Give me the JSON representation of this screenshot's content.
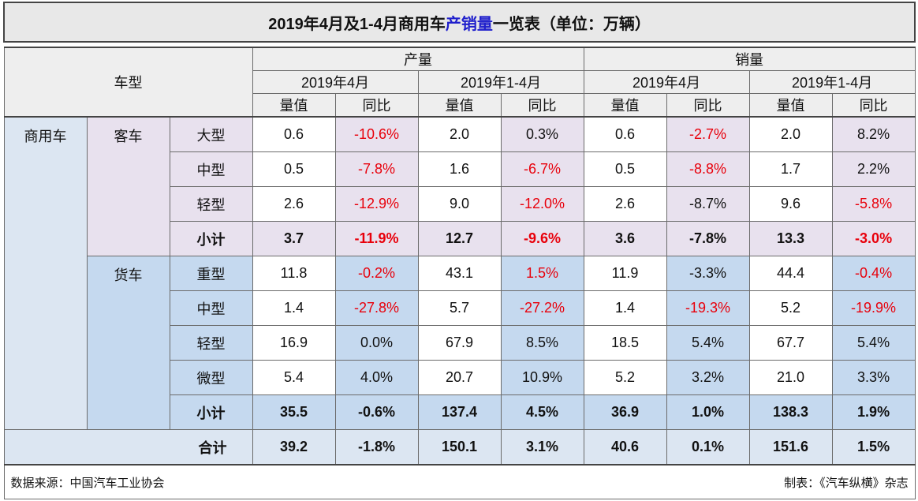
{
  "title": {
    "part1": "2019年4月及1-4月商用车",
    "highlight": "产销量",
    "part2": "一览表（单位：万辆）"
  },
  "header": {
    "vehicle_type": "车型",
    "production": "产量",
    "sales": "销量",
    "month": "2019年4月",
    "ytd": "2019年1-4月",
    "value": "量值",
    "yoy": "同比"
  },
  "groups": {
    "commercial": "商用车",
    "bus": "客车",
    "truck": "货车"
  },
  "subtotal_label": "小计",
  "total_label": "合计",
  "rows": [
    {
      "type": "大型",
      "p_m": "0.6",
      "p_m_y": "-10.6%",
      "p_y": "2.0",
      "p_y_y": "0.3%",
      "s_m": "0.6",
      "s_m_y": "-2.7%",
      "s_y": "2.0",
      "s_y_y": "8.2%"
    },
    {
      "type": "中型",
      "p_m": "0.5",
      "p_m_y": "-7.8%",
      "p_y": "1.6",
      "p_y_y": "-6.7%",
      "s_m": "0.5",
      "s_m_y": "-8.8%",
      "s_y": "1.7",
      "s_y_y": "2.2%"
    },
    {
      "type": "轻型",
      "p_m": "2.6",
      "p_m_y": "-12.9%",
      "p_y": "9.0",
      "p_y_y": "-12.0%",
      "s_m": "2.6",
      "s_m_y": "-8.7%",
      "s_y": "9.6",
      "s_y_y": "-5.8%"
    },
    {
      "type": "小计",
      "p_m": "3.7",
      "p_m_y": "-11.9%",
      "p_y": "12.7",
      "p_y_y": "-9.6%",
      "s_m": "3.6",
      "s_m_y": "-7.8%",
      "s_y": "13.3",
      "s_y_y": "-3.0%"
    },
    {
      "type": "重型",
      "p_m": "11.8",
      "p_m_y": "-0.2%",
      "p_y": "43.1",
      "p_y_y": "1.5%",
      "s_m": "11.9",
      "s_m_y": "-3.3%",
      "s_y": "44.4",
      "s_y_y": "-0.4%"
    },
    {
      "type": "中型",
      "p_m": "1.4",
      "p_m_y": "-27.8%",
      "p_y": "5.7",
      "p_y_y": "-27.2%",
      "s_m": "1.4",
      "s_m_y": "-19.3%",
      "s_y": "5.2",
      "s_y_y": "-19.9%"
    },
    {
      "type": "轻型",
      "p_m": "16.9",
      "p_m_y": "0.0%",
      "p_y": "67.9",
      "p_y_y": "8.5%",
      "s_m": "18.5",
      "s_m_y": "5.4%",
      "s_y": "67.7",
      "s_y_y": "5.4%"
    },
    {
      "type": "微型",
      "p_m": "5.4",
      "p_m_y": "4.0%",
      "p_y": "20.7",
      "p_y_y": "10.9%",
      "s_m": "5.2",
      "s_m_y": "3.2%",
      "s_y": "21.0",
      "s_y_y": "3.3%"
    },
    {
      "type": "小计",
      "p_m": "35.5",
      "p_m_y": "-0.6%",
      "p_y": "137.4",
      "p_y_y": "4.5%",
      "s_m": "36.9",
      "s_m_y": "1.0%",
      "s_y": "138.3",
      "s_y_y": "1.9%"
    },
    {
      "type": "合计",
      "p_m": "39.2",
      "p_m_y": "-1.8%",
      "p_y": "150.1",
      "p_y_y": "3.1%",
      "s_m": "40.6",
      "s_m_y": "0.1%",
      "s_y": "151.6",
      "s_y_y": "1.5%"
    }
  ],
  "footer": {
    "source": "数据来源：中国汽车工业协会",
    "credit": "制表：《汽车纵横》杂志"
  },
  "colors": {
    "title_bg": "#e8e8e8",
    "title_highlight": "#1f1fcc",
    "bus_bg": "#e8e1ee",
    "truck_bg": "#c5d9ef",
    "commercial_bg": "#dce6f2",
    "negative_red": "#e8000b"
  }
}
